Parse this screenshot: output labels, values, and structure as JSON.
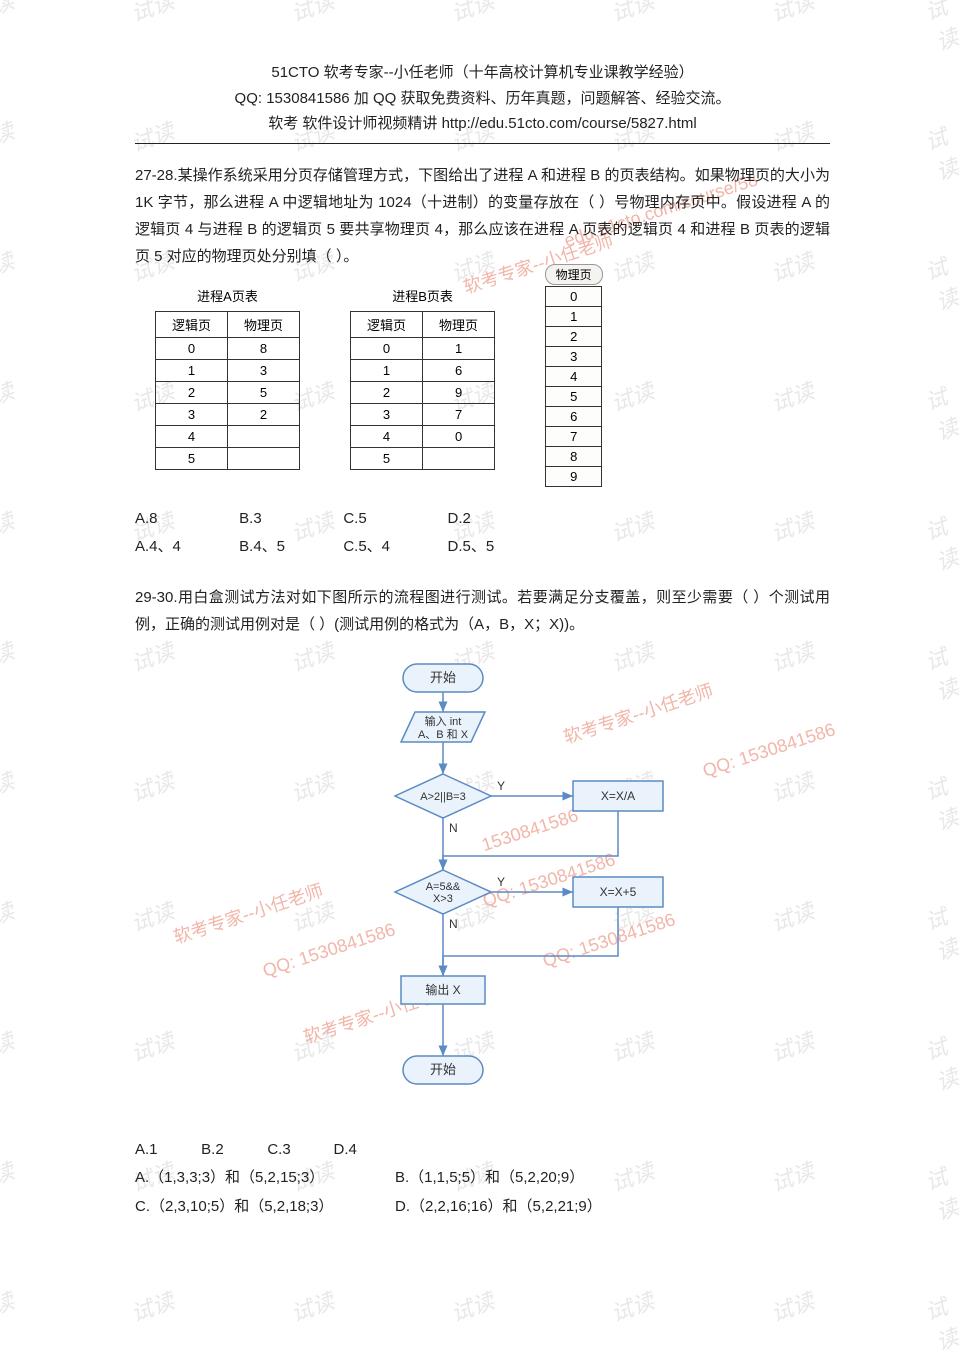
{
  "header": {
    "line1": "51CTO 软考专家--小任老师（十年高校计算机专业课教学经验）",
    "line2": "QQ: 1530841586 加 QQ 获取免费资料、历年真题，问题解答、经验交流。",
    "line3": "软考 软件设计师视频精讲 http://edu.51cto.com/course/5827.html"
  },
  "q27_28": {
    "text": "27-28.某操作系统采用分页存储管理方式，下图给出了进程 A 和进程 B 的页表结构。如果物理页的大小为 1K 字节，那么进程 A 中逻辑地址为 1024（十进制）的变量存放在（ ）号物理内存页中。假设进程 A 的逻辑页 4 与进程 B 的逻辑页 5 要共享物理页 4，那么应该在进程 A 页表的逻辑页 4 和进程 B 页表的逻辑页 5 对应的物理页处分别填（ ）。",
    "tableA": {
      "caption": "进程A页表",
      "headers": [
        "逻辑页",
        "物理页"
      ],
      "rows": [
        [
          "0",
          "8"
        ],
        [
          "1",
          "3"
        ],
        [
          "2",
          "5"
        ],
        [
          "3",
          "2"
        ],
        [
          "4",
          ""
        ],
        [
          "5",
          ""
        ]
      ]
    },
    "tableB": {
      "caption": "进程B页表",
      "headers": [
        "逻辑页",
        "物理页"
      ],
      "rows": [
        [
          "0",
          "1"
        ],
        [
          "1",
          "6"
        ],
        [
          "2",
          "9"
        ],
        [
          "3",
          "7"
        ],
        [
          "4",
          "0"
        ],
        [
          "5",
          ""
        ]
      ]
    },
    "physLabel": "物理页",
    "physRows": [
      "0",
      "1",
      "2",
      "3",
      "4",
      "5",
      "6",
      "7",
      "8",
      "9"
    ],
    "opts1": {
      "A": "A.8",
      "B": "B.3",
      "C": "C.5",
      "D": "D.2"
    },
    "opts2": {
      "A": "A.4、4",
      "B": "B.4、5",
      "C": "C.5、4",
      "D": "D.5、5"
    }
  },
  "q29_30": {
    "text": "29-30.用白盒测试方法对如下图所示的流程图进行测试。若要满足分支覆盖，则至少需要（ ）个测试用例，正确的测试用例对是（ ）(测试用例的格式为（A，B，X；X))。",
    "flow": {
      "start": "开始",
      "input": "输入 int\nA、B 和 X",
      "cond1": "A>2||B=3",
      "act1": "X=X/A",
      "cond2": "A=5&&\nX>3",
      "act2": "X=X+5",
      "output": "输出 X",
      "end": "开始",
      "yes": "Y",
      "no": "N",
      "colors": {
        "terminal_fill": "#eaf2fb",
        "terminal_stroke": "#5b8bc4",
        "io_fill": "#eaf2fb",
        "io_stroke": "#5b8bc4",
        "decision_fill": "#eaf2fb",
        "decision_stroke": "#5b8bc4",
        "process_fill": "#eaf2fb",
        "process_stroke": "#5b8bc4",
        "arrow": "#5b8bc4",
        "text": "#333333"
      }
    },
    "opts1": {
      "A": "A.1",
      "B": "B.2",
      "C": "C.3",
      "D": "D.4"
    },
    "opts2": {
      "A": "A.（1,3,3;3）和（5,2,15;3）",
      "B": "B.（1,1,5;5）和（5,2,20;9）",
      "C": "C.（2,3,10;5）和（5,2,18;3）",
      "D": "D.（2,2,16;16）和（5,2,21;9）"
    }
  },
  "watermark": {
    "text": "试读",
    "red1": "软考专家--小任老师",
    "red2": "QQ: 1530841586"
  }
}
